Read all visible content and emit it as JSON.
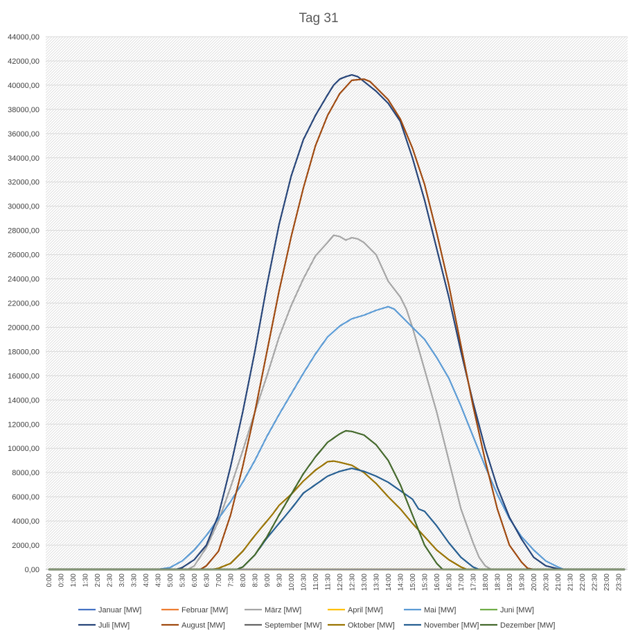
{
  "chart_data": {
    "type": "line",
    "title": "Tag 31",
    "xlabel": "",
    "ylabel": "",
    "ylim": [
      0,
      44000
    ],
    "ytick_step": 2000,
    "x_ticks": [
      "0:00",
      "0:30",
      "1:00",
      "1:30",
      "2:00",
      "2:30",
      "3:00",
      "3:30",
      "4:00",
      "4:30",
      "5:00",
      "5:30",
      "6:00",
      "6:30",
      "7:00",
      "7:30",
      "8:00",
      "8:30",
      "9:00",
      "9:30",
      "10:00",
      "10:30",
      "11:00",
      "11:30",
      "12:00",
      "12:30",
      "13:00",
      "13:30",
      "14:00",
      "14:30",
      "15:00",
      "15:30",
      "16:00",
      "16:30",
      "17:00",
      "17:30",
      "18:00",
      "18:30",
      "19:00",
      "19:30",
      "20:00",
      "20:30",
      "21:00",
      "21:30",
      "22:00",
      "22:30",
      "23:00",
      "23:30"
    ],
    "grid": true,
    "legend_position": "bottom",
    "series": [
      {
        "name": "Januar [MW]",
        "color": "#4472c4",
        "points": [
          [
            "0:00",
            0
          ],
          [
            "23:45",
            0
          ]
        ]
      },
      {
        "name": "Februar [MW]",
        "color": "#ed7d31",
        "points": [
          [
            "0:00",
            0
          ],
          [
            "23:45",
            0
          ]
        ]
      },
      {
        "name": "März [MW]",
        "color": "#a5a5a5",
        "points": [
          [
            "0:00",
            0
          ],
          [
            "5:45",
            0
          ],
          [
            "6:00",
            300
          ],
          [
            "6:30",
            1800
          ],
          [
            "7:00",
            4000
          ],
          [
            "7:30",
            6800
          ],
          [
            "8:00",
            9800
          ],
          [
            "8:30",
            13000
          ],
          [
            "9:00",
            16000
          ],
          [
            "9:30",
            19200
          ],
          [
            "10:00",
            21800
          ],
          [
            "10:30",
            24000
          ],
          [
            "11:00",
            25900
          ],
          [
            "11:30",
            27000
          ],
          [
            "11:45",
            27600
          ],
          [
            "12:00",
            27500
          ],
          [
            "12:15",
            27200
          ],
          [
            "12:30",
            27400
          ],
          [
            "12:45",
            27300
          ],
          [
            "13:00",
            27000
          ],
          [
            "13:30",
            26000
          ],
          [
            "14:00",
            23800
          ],
          [
            "14:30",
            22500
          ],
          [
            "14:45",
            21500
          ],
          [
            "15:00",
            20000
          ],
          [
            "15:30",
            16500
          ],
          [
            "16:00",
            13000
          ],
          [
            "16:30",
            9000
          ],
          [
            "17:00",
            5000
          ],
          [
            "17:30",
            2200
          ],
          [
            "17:45",
            1000
          ],
          [
            "18:00",
            300
          ],
          [
            "18:15",
            0
          ],
          [
            "23:45",
            0
          ]
        ]
      },
      {
        "name": "April [MW]",
        "color": "#ffc000",
        "points": [
          [
            "0:00",
            0
          ],
          [
            "23:45",
            0
          ]
        ]
      },
      {
        "name": "Mai [MW]",
        "color": "#5b9bd5",
        "points": [
          [
            "0:00",
            0
          ],
          [
            "4:30",
            0
          ],
          [
            "5:00",
            150
          ],
          [
            "5:30",
            700
          ],
          [
            "6:00",
            1600
          ],
          [
            "6:30",
            2800
          ],
          [
            "7:00",
            4200
          ],
          [
            "7:30",
            5600
          ],
          [
            "8:00",
            7200
          ],
          [
            "8:30",
            9000
          ],
          [
            "9:00",
            11000
          ],
          [
            "9:30",
            12800
          ],
          [
            "10:00",
            14500
          ],
          [
            "10:30",
            16200
          ],
          [
            "11:00",
            17800
          ],
          [
            "11:30",
            19200
          ],
          [
            "12:00",
            20100
          ],
          [
            "12:30",
            20700
          ],
          [
            "13:00",
            21000
          ],
          [
            "13:30",
            21400
          ],
          [
            "14:00",
            21700
          ],
          [
            "14:15",
            21500
          ],
          [
            "14:30",
            21000
          ],
          [
            "15:00",
            20000
          ],
          [
            "15:30",
            19000
          ],
          [
            "16:00",
            17500
          ],
          [
            "16:30",
            15800
          ],
          [
            "17:00",
            13500
          ],
          [
            "17:30",
            11000
          ],
          [
            "18:00",
            8500
          ],
          [
            "18:30",
            6200
          ],
          [
            "19:00",
            4200
          ],
          [
            "19:30",
            2700
          ],
          [
            "20:00",
            1600
          ],
          [
            "20:30",
            700
          ],
          [
            "21:00",
            200
          ],
          [
            "21:15",
            0
          ],
          [
            "23:45",
            0
          ]
        ]
      },
      {
        "name": "Juni [MW]",
        "color": "#70ad47",
        "points": [
          [
            "0:00",
            0
          ],
          [
            "23:45",
            0
          ]
        ]
      },
      {
        "name": "Juli [MW]",
        "color": "#264478",
        "points": [
          [
            "0:00",
            0
          ],
          [
            "5:15",
            0
          ],
          [
            "5:30",
            150
          ],
          [
            "6:00",
            800
          ],
          [
            "6:30",
            2000
          ],
          [
            "7:00",
            4500
          ],
          [
            "7:30",
            8500
          ],
          [
            "8:00",
            13000
          ],
          [
            "8:30",
            18000
          ],
          [
            "9:00",
            23500
          ],
          [
            "9:30",
            28500
          ],
          [
            "10:00",
            32500
          ],
          [
            "10:30",
            35500
          ],
          [
            "11:00",
            37500
          ],
          [
            "11:30",
            39200
          ],
          [
            "11:45",
            40000
          ],
          [
            "12:00",
            40500
          ],
          [
            "12:15",
            40700
          ],
          [
            "12:30",
            40850
          ],
          [
            "12:45",
            40700
          ],
          [
            "13:00",
            40300
          ],
          [
            "13:30",
            39500
          ],
          [
            "14:00",
            38500
          ],
          [
            "14:30",
            37000
          ],
          [
            "15:00",
            34000
          ],
          [
            "15:30",
            30500
          ],
          [
            "16:00",
            26500
          ],
          [
            "16:30",
            22500
          ],
          [
            "17:00",
            18000
          ],
          [
            "17:30",
            13800
          ],
          [
            "18:00",
            10000
          ],
          [
            "18:30",
            6800
          ],
          [
            "19:00",
            4300
          ],
          [
            "19:30",
            2500
          ],
          [
            "20:00",
            1000
          ],
          [
            "20:30",
            300
          ],
          [
            "21:00",
            50
          ],
          [
            "21:15",
            0
          ],
          [
            "23:45",
            0
          ]
        ]
      },
      {
        "name": "August [MW]",
        "color": "#9e480e",
        "points": [
          [
            "0:00",
            0
          ],
          [
            "6:15",
            0
          ],
          [
            "6:30",
            300
          ],
          [
            "7:00",
            1500
          ],
          [
            "7:30",
            4500
          ],
          [
            "8:00",
            8500
          ],
          [
            "8:30",
            13000
          ],
          [
            "9:00",
            18000
          ],
          [
            "9:30",
            23000
          ],
          [
            "10:00",
            27500
          ],
          [
            "10:30",
            31500
          ],
          [
            "11:00",
            35000
          ],
          [
            "11:30",
            37500
          ],
          [
            "12:00",
            39300
          ],
          [
            "12:30",
            40400
          ],
          [
            "13:00",
            40500
          ],
          [
            "13:15",
            40300
          ],
          [
            "13:30",
            39800
          ],
          [
            "14:00",
            38800
          ],
          [
            "14:30",
            37200
          ],
          [
            "15:00",
            34800
          ],
          [
            "15:30",
            31800
          ],
          [
            "16:00",
            27800
          ],
          [
            "16:30",
            23500
          ],
          [
            "17:00",
            18500
          ],
          [
            "17:30",
            13500
          ],
          [
            "18:00",
            9000
          ],
          [
            "18:30",
            5000
          ],
          [
            "19:00",
            2000
          ],
          [
            "19:30",
            600
          ],
          [
            "19:45",
            100
          ],
          [
            "20:00",
            0
          ],
          [
            "23:45",
            0
          ]
        ]
      },
      {
        "name": "September [MW]",
        "color": "#636363",
        "points": [
          [
            "0:00",
            0
          ],
          [
            "23:45",
            0
          ]
        ]
      },
      {
        "name": "Oktober [MW]",
        "color": "#997300",
        "points": [
          [
            "0:00",
            0
          ],
          [
            "6:45",
            0
          ],
          [
            "7:00",
            100
          ],
          [
            "7:30",
            500
          ],
          [
            "8:00",
            1500
          ],
          [
            "8:30",
            2800
          ],
          [
            "9:00",
            4000
          ],
          [
            "9:15",
            4600
          ],
          [
            "9:30",
            5300
          ],
          [
            "10:00",
            6200
          ],
          [
            "10:30",
            7300
          ],
          [
            "11:00",
            8200
          ],
          [
            "11:30",
            8900
          ],
          [
            "11:45",
            8950
          ],
          [
            "12:00",
            8850
          ],
          [
            "12:30",
            8600
          ],
          [
            "13:00",
            8000
          ],
          [
            "13:30",
            7100
          ],
          [
            "14:00",
            6000
          ],
          [
            "14:30",
            5000
          ],
          [
            "15:00",
            3800
          ],
          [
            "15:30",
            2700
          ],
          [
            "16:00",
            1600
          ],
          [
            "16:30",
            800
          ],
          [
            "17:00",
            200
          ],
          [
            "17:15",
            0
          ],
          [
            "23:45",
            0
          ]
        ]
      },
      {
        "name": "November [MW]",
        "color": "#255e91",
        "points": [
          [
            "0:00",
            0
          ],
          [
            "7:45",
            0
          ],
          [
            "8:00",
            200
          ],
          [
            "8:30",
            1200
          ],
          [
            "9:00",
            2600
          ],
          [
            "9:30",
            3800
          ],
          [
            "10:00",
            5000
          ],
          [
            "10:30",
            6300
          ],
          [
            "11:00",
            7000
          ],
          [
            "11:30",
            7700
          ],
          [
            "12:00",
            8100
          ],
          [
            "12:30",
            8350
          ],
          [
            "13:00",
            8100
          ],
          [
            "13:30",
            7700
          ],
          [
            "14:00",
            7200
          ],
          [
            "14:30",
            6500
          ],
          [
            "15:00",
            5800
          ],
          [
            "15:15",
            5000
          ],
          [
            "15:30",
            4800
          ],
          [
            "16:00",
            3600
          ],
          [
            "16:30",
            2200
          ],
          [
            "17:00",
            1000
          ],
          [
            "17:30",
            200
          ],
          [
            "17:45",
            0
          ],
          [
            "23:45",
            0
          ]
        ]
      },
      {
        "name": "Dezember [MW]",
        "color": "#43682b",
        "points": [
          [
            "0:00",
            0
          ],
          [
            "7:45",
            0
          ],
          [
            "8:00",
            200
          ],
          [
            "8:30",
            1200
          ],
          [
            "9:00",
            2700
          ],
          [
            "9:30",
            4500
          ],
          [
            "10:00",
            6200
          ],
          [
            "10:30",
            7900
          ],
          [
            "11:00",
            9300
          ],
          [
            "11:30",
            10500
          ],
          [
            "12:00",
            11200
          ],
          [
            "12:15",
            11450
          ],
          [
            "12:30",
            11400
          ],
          [
            "13:00",
            11100
          ],
          [
            "13:30",
            10300
          ],
          [
            "14:00",
            9000
          ],
          [
            "14:30",
            7000
          ],
          [
            "15:00",
            4500
          ],
          [
            "15:30",
            2000
          ],
          [
            "16:00",
            500
          ],
          [
            "16:15",
            0
          ],
          [
            "23:45",
            0
          ]
        ]
      }
    ]
  }
}
